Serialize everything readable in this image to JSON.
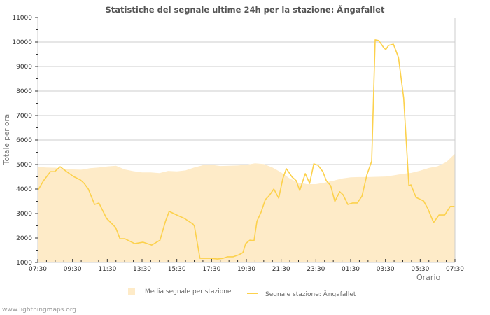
{
  "chart": {
    "title": "Statistiche del segnale ultime 24h per la stazione: Ãngafallet",
    "ylabel": "Totale per ora",
    "xlabel": "Orario",
    "credit": "www.lightningmaps.org",
    "legend": {
      "area_label": "Media segnale per stazione",
      "line_label": "Segnale stazione: Ãngafallet"
    },
    "colors": {
      "area": "#feebc8",
      "line": "#fcd14c",
      "grid": "#cccccc",
      "axis": "#cccccc"
    }
  },
  "chart_data": {
    "type": "line",
    "title": "Statistiche del segnale ultime 24h per la stazione: Ãngafallet",
    "xlabel": "Orario",
    "ylabel": "Totale per ora",
    "ylim": [
      1000,
      11000
    ],
    "yticks": [
      1000,
      2000,
      3000,
      4000,
      5000,
      6000,
      7000,
      8000,
      9000,
      10000,
      11000
    ],
    "xticks": [
      "07:30",
      "09:30",
      "11:30",
      "13:30",
      "15:30",
      "17:30",
      "19:30",
      "21:30",
      "23:30",
      "01:30",
      "03:30",
      "05:30",
      "07:30"
    ],
    "grid": true,
    "legend_position": "bottom",
    "x_hours_from_start": [
      0,
      0.33,
      0.73,
      0.97,
      1.29,
      1.66,
      2.06,
      2.46,
      2.67,
      2.91,
      3.27,
      3.52,
      3.96,
      4.48,
      4.73,
      5.01,
      5.58,
      6.06,
      6.55,
      7.03,
      7.35,
      7.56,
      8.0,
      8.44,
      8.93,
      9.01,
      9.33,
      9.94,
      10.34,
      10.67,
      10.91,
      11.23,
      11.56,
      11.8,
      11.96,
      12.2,
      12.44,
      12.61,
      12.85,
      13.09,
      13.29,
      13.58,
      13.86,
      14.1,
      14.3,
      14.63,
      14.87,
      15.07,
      15.39,
      15.64,
      15.88,
      16.12,
      16.4,
      16.6,
      16.85,
      17.09,
      17.37,
      17.56,
      17.84,
      18.1,
      18.38,
      18.65,
      18.93,
      19.21,
      19.41,
      19.62,
      19.9,
      20.02,
      20.18,
      20.46,
      20.75,
      21.05,
      21.35,
      21.47,
      21.76,
      22.2,
      22.44,
      22.77,
      23.08,
      23.41,
      23.73,
      23.97
    ],
    "series": [
      {
        "name": "Segnale stazione: Ãngafallet",
        "kind": "line",
        "values": [
          3940,
          4340,
          4710,
          4710,
          4910,
          4710,
          4510,
          4370,
          4230,
          4000,
          3370,
          3430,
          2800,
          2430,
          1970,
          1970,
          1770,
          1830,
          1710,
          1910,
          2690,
          3090,
          2940,
          2800,
          2570,
          2490,
          1170,
          1170,
          1140,
          1170,
          1230,
          1230,
          1310,
          1400,
          1770,
          1910,
          1890,
          2690,
          3060,
          3570,
          3710,
          4000,
          3630,
          4430,
          4830,
          4490,
          4340,
          3940,
          4630,
          4230,
          5030,
          4970,
          4710,
          4340,
          4140,
          3490,
          3890,
          3770,
          3370,
          3430,
          3430,
          3710,
          4570,
          5140,
          10090,
          10060,
          9770,
          9690,
          9860,
          9910,
          9370,
          7710,
          4140,
          4170,
          3660,
          3510,
          3200,
          2630,
          2940,
          2940,
          3290,
          3290
        ]
      },
      {
        "name": "Media segnale per stazione",
        "kind": "area",
        "x_hours_from_start": [
          0,
          0.5,
          1,
          1.5,
          2,
          2.5,
          3,
          3.5,
          4,
          4.5,
          5,
          5.5,
          6,
          6.5,
          7,
          7.5,
          8,
          8.5,
          9,
          9.5,
          10,
          10.5,
          11,
          11.5,
          12,
          12.5,
          13,
          13.5,
          14,
          14.5,
          15,
          15.5,
          16,
          16.5,
          17,
          17.5,
          18,
          18.5,
          19,
          19.5,
          20,
          20.5,
          21,
          21.5,
          22,
          22.5,
          23,
          23.5,
          24
        ],
        "values": [
          4900,
          4880,
          4870,
          4830,
          4800,
          4790,
          4850,
          4880,
          4920,
          4950,
          4800,
          4730,
          4680,
          4680,
          4650,
          4740,
          4720,
          4760,
          4880,
          4970,
          4990,
          4940,
          4950,
          4960,
          4990,
          5050,
          5020,
          4880,
          4680,
          4430,
          4260,
          4200,
          4200,
          4260,
          4340,
          4430,
          4480,
          4490,
          4490,
          4500,
          4510,
          4560,
          4620,
          4660,
          4750,
          4860,
          4930,
          5100,
          5440
        ]
      }
    ]
  }
}
